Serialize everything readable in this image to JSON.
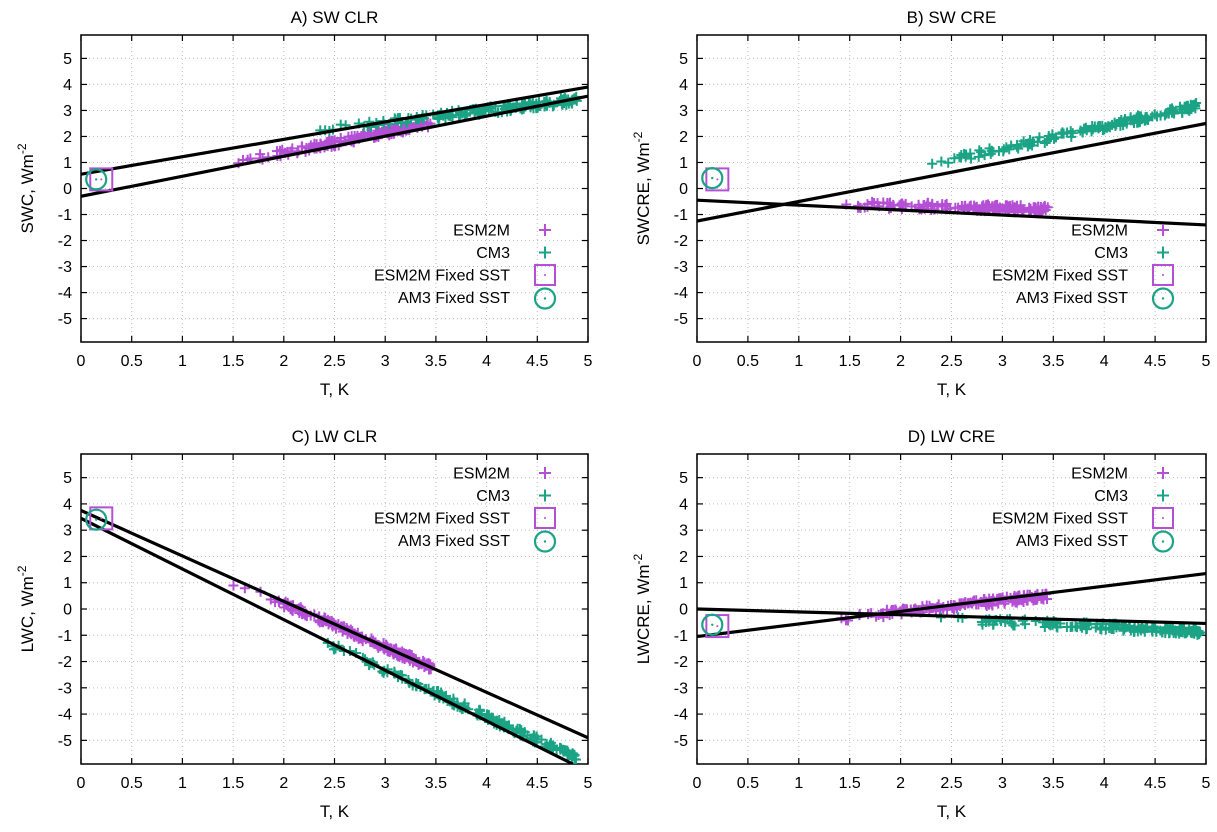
{
  "colors": {
    "esm2m": "#b44fd6",
    "cm3": "#1aa385",
    "fit_line": "#000000",
    "grid": "#bfbfbf"
  },
  "legend_labels": [
    "ESM2M",
    "CM3",
    "ESM2M Fixed SST",
    "AM3 Fixed SST"
  ],
  "chart_data": [
    {
      "type": "scatter",
      "title": "A) SW CLR",
      "xlabel": "T, K",
      "ylabel": "SWC, Wm",
      "ylabel_sup": "-2",
      "xlim": [
        0,
        5
      ],
      "ylim": [
        -5.9,
        5.9
      ],
      "xticks": [
        0,
        0.5,
        1,
        1.5,
        2,
        2.5,
        3,
        3.5,
        4,
        4.5,
        5
      ],
      "yticks": [
        -5,
        -4,
        -3,
        -2,
        -1,
        0,
        1,
        2,
        3,
        4,
        5
      ],
      "grid": true,
      "legend_position": "bottom-right",
      "series": [
        {
          "name": "ESM2M",
          "marker": "plus",
          "x": [
            1.4,
            3.45
          ],
          "y": [
            0.9,
            2.5
          ]
        },
        {
          "name": "CM3",
          "marker": "plus",
          "x": [
            2.2,
            4.9
          ],
          "y": [
            2.2,
            3.4
          ]
        },
        {
          "name": "ESM2M Fixed SST",
          "marker": "square",
          "x": [
            0.2
          ],
          "y": [
            0.35
          ]
        },
        {
          "name": "AM3 Fixed SST",
          "marker": "circle",
          "x": [
            0.15
          ],
          "y": [
            0.35
          ]
        }
      ],
      "fit_lines": [
        {
          "x": [
            0,
            5
          ],
          "y": [
            0.55,
            3.9
          ]
        },
        {
          "x": [
            0,
            5
          ],
          "y": [
            -0.3,
            3.55
          ]
        }
      ]
    },
    {
      "type": "scatter",
      "title": "B) SW CRE",
      "xlabel": "T, K",
      "ylabel": "SWCRE, Wm",
      "ylabel_sup": "-2",
      "xlim": [
        0,
        5
      ],
      "ylim": [
        -5.9,
        5.9
      ],
      "xticks": [
        0,
        0.5,
        1,
        1.5,
        2,
        2.5,
        3,
        3.5,
        4,
        4.5,
        5
      ],
      "yticks": [
        -5,
        -4,
        -3,
        -2,
        -1,
        0,
        1,
        2,
        3,
        4,
        5
      ],
      "grid": true,
      "legend_position": "bottom-right",
      "series": [
        {
          "name": "ESM2M",
          "marker": "plus",
          "x": [
            1.4,
            3.45
          ],
          "y": [
            -0.6,
            -0.8
          ]
        },
        {
          "name": "CM3",
          "marker": "plus",
          "x": [
            2.2,
            4.95
          ],
          "y": [
            0.85,
            3.2
          ]
        },
        {
          "name": "ESM2M Fixed SST",
          "marker": "square",
          "x": [
            0.2
          ],
          "y": [
            0.35
          ]
        },
        {
          "name": "AM3 Fixed SST",
          "marker": "circle",
          "x": [
            0.15
          ],
          "y": [
            0.4
          ]
        }
      ],
      "fit_lines": [
        {
          "x": [
            0,
            5
          ],
          "y": [
            -0.45,
            -1.4
          ]
        },
        {
          "x": [
            0,
            5
          ],
          "y": [
            -1.25,
            2.5
          ]
        }
      ]
    },
    {
      "type": "scatter",
      "title": "C) LW CLR",
      "xlabel": "T, K",
      "ylabel": "LWC, Wm",
      "ylabel_sup": "-2",
      "xlim": [
        0,
        5
      ],
      "ylim": [
        -5.9,
        5.9
      ],
      "xticks": [
        0,
        0.5,
        1,
        1.5,
        2,
        2.5,
        3,
        3.5,
        4,
        4.5,
        5
      ],
      "yticks": [
        -5,
        -4,
        -3,
        -2,
        -1,
        0,
        1,
        2,
        3,
        4,
        5
      ],
      "grid": true,
      "legend_position": "top-right",
      "series": [
        {
          "name": "ESM2M",
          "marker": "plus",
          "x": [
            1.4,
            3.45
          ],
          "y": [
            1.2,
            -2.2
          ]
        },
        {
          "name": "CM3",
          "marker": "plus",
          "x": [
            2.2,
            4.9
          ],
          "y": [
            -0.9,
            -5.7
          ]
        },
        {
          "name": "ESM2M Fixed SST",
          "marker": "square",
          "x": [
            0.2
          ],
          "y": [
            3.45
          ]
        },
        {
          "name": "AM3 Fixed SST",
          "marker": "circle",
          "x": [
            0.15
          ],
          "y": [
            3.4
          ]
        }
      ],
      "fit_lines": [
        {
          "x": [
            0,
            5
          ],
          "y": [
            3.75,
            -4.9
          ]
        },
        {
          "x": [
            0,
            4.85
          ],
          "y": [
            3.45,
            -5.9
          ]
        }
      ]
    },
    {
      "type": "scatter",
      "title": "D) LW CRE",
      "xlabel": "T, K",
      "ylabel": "LWCRE, Wm",
      "ylabel_sup": "-2",
      "xlim": [
        0,
        5
      ],
      "ylim": [
        -5.9,
        5.9
      ],
      "xticks": [
        0,
        0.5,
        1,
        1.5,
        2,
        2.5,
        3,
        3.5,
        4,
        4.5,
        5
      ],
      "yticks": [
        -5,
        -4,
        -3,
        -2,
        -1,
        0,
        1,
        2,
        3,
        4,
        5
      ],
      "grid": true,
      "legend_position": "top-right",
      "series": [
        {
          "name": "ESM2M",
          "marker": "plus",
          "x": [
            1.4,
            3.45
          ],
          "y": [
            -0.35,
            0.5
          ]
        },
        {
          "name": "CM3",
          "marker": "plus",
          "x": [
            2.2,
            4.95
          ],
          "y": [
            -0.35,
            -0.85
          ]
        },
        {
          "name": "ESM2M Fixed SST",
          "marker": "square",
          "x": [
            0.2
          ],
          "y": [
            -0.65
          ]
        },
        {
          "name": "AM3 Fixed SST",
          "marker": "circle",
          "x": [
            0.15
          ],
          "y": [
            -0.6
          ]
        }
      ],
      "fit_lines": [
        {
          "x": [
            0,
            5
          ],
          "y": [
            0.0,
            -0.55
          ]
        },
        {
          "x": [
            0,
            5
          ],
          "y": [
            -1.05,
            1.35
          ]
        }
      ]
    }
  ]
}
